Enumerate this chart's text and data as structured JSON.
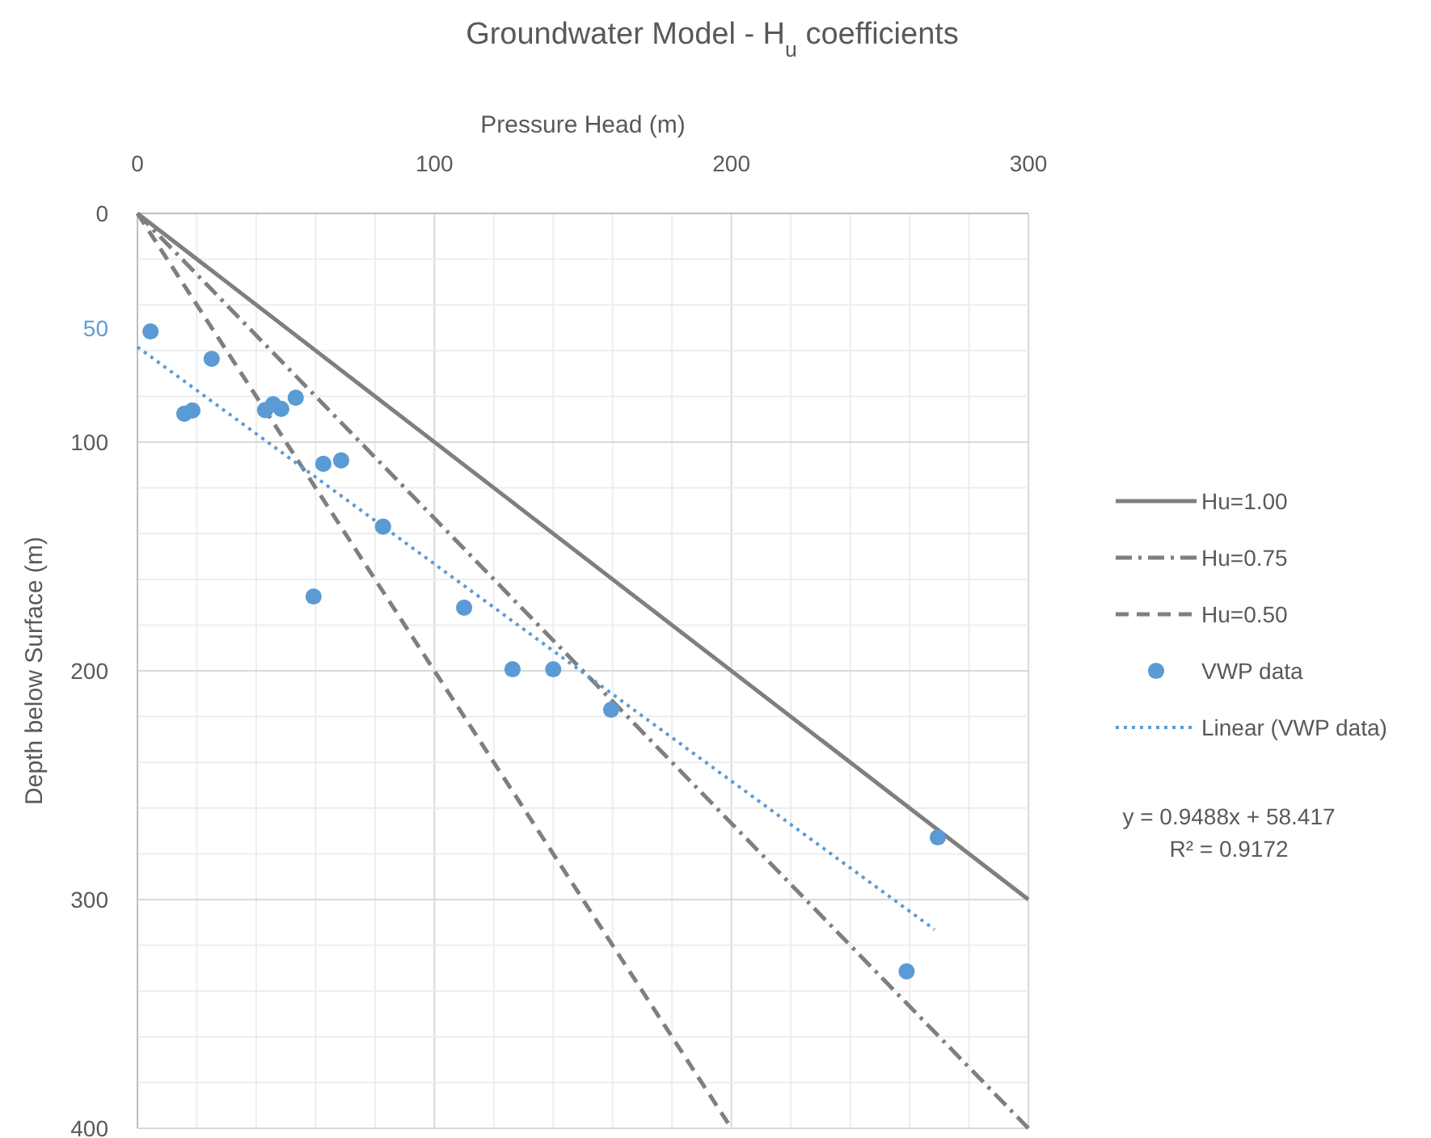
{
  "chart_data": {
    "type": "scatter",
    "title": "Groundwater Model - H$_{u}$ coefficients",
    "xlabel": "Pressure Head (m)",
    "ylabel": "Depth below Surface (m)",
    "xlim": [
      0,
      300
    ],
    "xticks": [
      0,
      {
        "value": 20,
        "label": null
      },
      {
        "value": 40,
        "label": null
      },
      {
        "value": 60,
        "label": null
      },
      {
        "value": 80,
        "label": null
      },
      100,
      {
        "value": 120,
        "label": null
      },
      {
        "value": 140,
        "label": null
      },
      {
        "value": 160,
        "label": null
      },
      {
        "value": 180,
        "label": null
      },
      200,
      {
        "value": 220,
        "label": null
      },
      {
        "value": 240,
        "label": null
      },
      {
        "value": 260,
        "label": null
      },
      {
        "value": 280,
        "label": null
      },
      300
    ],
    "ylim": [
      400,
      0
    ],
    "yticks": [
      0,
      {
        "value": 20,
        "label": null
      },
      {
        "value": 40,
        "label": null
      },
      {
        "value": 60,
        "label": null
      },
      {
        "value": 80,
        "label": null
      },
      100,
      {
        "value": 120,
        "label": null
      },
      {
        "value": 140,
        "label": null
      },
      {
        "value": 160,
        "label": null
      },
      {
        "value": 180,
        "label": null
      },
      200,
      {
        "value": 220,
        "label": null
      },
      {
        "value": 240,
        "label": null
      },
      {
        "value": 260,
        "label": null
      },
      {
        "value": 280,
        "label": null
      },
      300,
      {
        "value": 320,
        "label": null
      },
      {
        "value": 340,
        "label": null
      },
      {
        "value": 360,
        "label": null
      },
      {
        "value": 380,
        "label": null
      },
      400
    ],
    "grid": true,
    "legend": "right",
    "series": [
      {
        "name": "Hu=1.00",
        "type": "line",
        "color": "#7f7f7f",
        "line_style": "solid",
        "x": [
          0,
          300
        ],
        "values": [
          0,
          300
        ]
      },
      {
        "name": "Hu=0.75",
        "type": "line",
        "color": "#7f7f7f",
        "line_style": "dashdot",
        "x": [
          0,
          300
        ],
        "values": [
          0,
          400
        ]
      },
      {
        "name": "Hu=0.50",
        "type": "line",
        "color": "#7f7f7f",
        "line_style": "dashed",
        "x": [
          0,
          200
        ],
        "values": [
          0,
          400
        ]
      },
      {
        "name": "VWP data",
        "color": "#5b9bd5",
        "marker": "circle",
        "x": [
          4.4,
          25,
          15.8,
          18.5,
          43,
          45.7,
          48.4,
          53.3,
          62.6,
          68.6,
          82.7,
          59.3,
          110,
          126.3,
          140,
          159.5,
          269.5,
          259
        ],
        "values": [
          51.6,
          63.6,
          87.6,
          86.2,
          86,
          83.4,
          85.5,
          80.6,
          109.5,
          108,
          137,
          167.5,
          172.4,
          199.3,
          199.3,
          217,
          272.8,
          331.4
        ]
      },
      {
        "name": "Linear (VWP data)",
        "type": "line",
        "color": "#5b9bd5",
        "line_style": "dotted",
        "x": [
          0,
          268.4
        ],
        "values": [
          58.4,
          313.1
        ]
      }
    ],
    "annotations": [
      {
        "text": "50",
        "x": 0,
        "y": 50
      },
      "y = 0.9488x + 58.417",
      "R² = 0.9172"
    ]
  }
}
